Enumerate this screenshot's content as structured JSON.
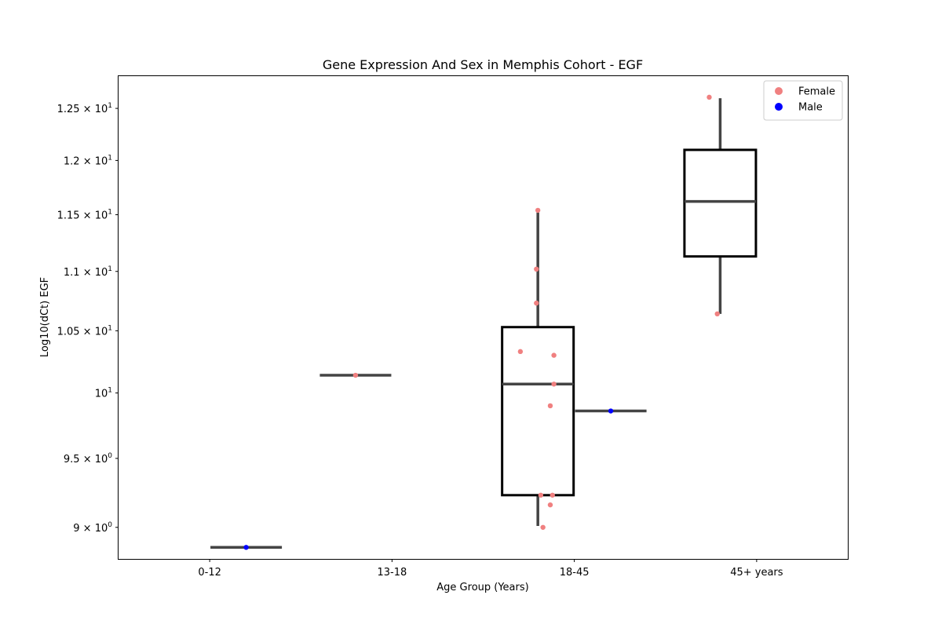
{
  "chart_data": {
    "type": "box",
    "title": "Gene Expression And Sex in Memphis Cohort - EGF",
    "xlabel": "Age Group (Years)",
    "ylabel": "Log10(dCt) EGF",
    "y_scale": "log",
    "ylim": [
      8.78,
      12.82
    ],
    "grid": false,
    "legend_position": "top-right",
    "categories": [
      "0-12",
      "13-18",
      "18-45",
      "45+ years"
    ],
    "y_ticks": [
      {
        "value": 9.0,
        "mantissa": "9",
        "exp": "0"
      },
      {
        "value": 9.5,
        "mantissa": "9.5",
        "exp": "0"
      },
      {
        "value": 10.0,
        "mantissa": "",
        "exp": "1"
      },
      {
        "value": 10.5,
        "mantissa": "1.05",
        "exp": "1"
      },
      {
        "value": 11.0,
        "mantissa": "1.1",
        "exp": "1"
      },
      {
        "value": 11.5,
        "mantissa": "1.15",
        "exp": "1"
      },
      {
        "value": 12.0,
        "mantissa": "1.2",
        "exp": "1"
      },
      {
        "value": 12.5,
        "mantissa": "1.25",
        "exp": "1"
      }
    ],
    "hue_order": [
      "Female",
      "Male"
    ],
    "series": [
      {
        "name": "Female",
        "color": "#f08080"
      },
      {
        "name": "Male",
        "color": "#0000ff"
      }
    ],
    "boxes": [
      {
        "category": "0-12",
        "group": "Male",
        "q1": 8.86,
        "median": 8.86,
        "q3": 8.86,
        "whisker_low": 8.86,
        "whisker_high": 8.86
      },
      {
        "category": "13-18",
        "group": "Female",
        "q1": 10.14,
        "median": 10.14,
        "q3": 10.14,
        "whisker_low": 10.14,
        "whisker_high": 10.14
      },
      {
        "category": "18-45",
        "group": "Female",
        "q1": 9.23,
        "median": 10.07,
        "q3": 10.53,
        "whisker_low": 9.01,
        "whisker_high": 11.52
      },
      {
        "category": "18-45",
        "group": "Male",
        "q1": 9.86,
        "median": 9.86,
        "q3": 9.86,
        "whisker_low": 9.86,
        "whisker_high": 9.86
      },
      {
        "category": "45+ years",
        "group": "Female",
        "q1": 11.13,
        "median": 11.62,
        "q3": 12.1,
        "whisker_low": 10.64,
        "whisker_high": 12.6
      }
    ],
    "points": [
      {
        "category": "0-12",
        "group": "Male",
        "y": 8.86,
        "jitter": 0
      },
      {
        "category": "13-18",
        "group": "Female",
        "y": 10.14,
        "jitter": 0
      },
      {
        "category": "18-45",
        "group": "Female",
        "y": 11.54,
        "jitter": 0
      },
      {
        "category": "18-45",
        "group": "Female",
        "y": 11.02,
        "jitter": -0.02
      },
      {
        "category": "18-45",
        "group": "Female",
        "y": 10.73,
        "jitter": -0.02
      },
      {
        "category": "18-45",
        "group": "Female",
        "y": 10.33,
        "jitter": -0.24
      },
      {
        "category": "18-45",
        "group": "Female",
        "y": 10.3,
        "jitter": 0.22
      },
      {
        "category": "18-45",
        "group": "Female",
        "y": 10.07,
        "jitter": 0.22
      },
      {
        "category": "18-45",
        "group": "Female",
        "y": 9.9,
        "jitter": 0.17
      },
      {
        "category": "18-45",
        "group": "Female",
        "y": 9.23,
        "jitter": 0.04
      },
      {
        "category": "18-45",
        "group": "Female",
        "y": 9.23,
        "jitter": 0.2
      },
      {
        "category": "18-45",
        "group": "Female",
        "y": 9.16,
        "jitter": 0.17
      },
      {
        "category": "18-45",
        "group": "Female",
        "y": 9.0,
        "jitter": 0.07
      },
      {
        "category": "18-45",
        "group": "Male",
        "y": 9.86,
        "jitter": 0
      },
      {
        "category": "45+ years",
        "group": "Female",
        "y": 12.61,
        "jitter": -0.15
      },
      {
        "category": "45+ years",
        "group": "Female",
        "y": 10.64,
        "jitter": -0.04
      }
    ]
  }
}
